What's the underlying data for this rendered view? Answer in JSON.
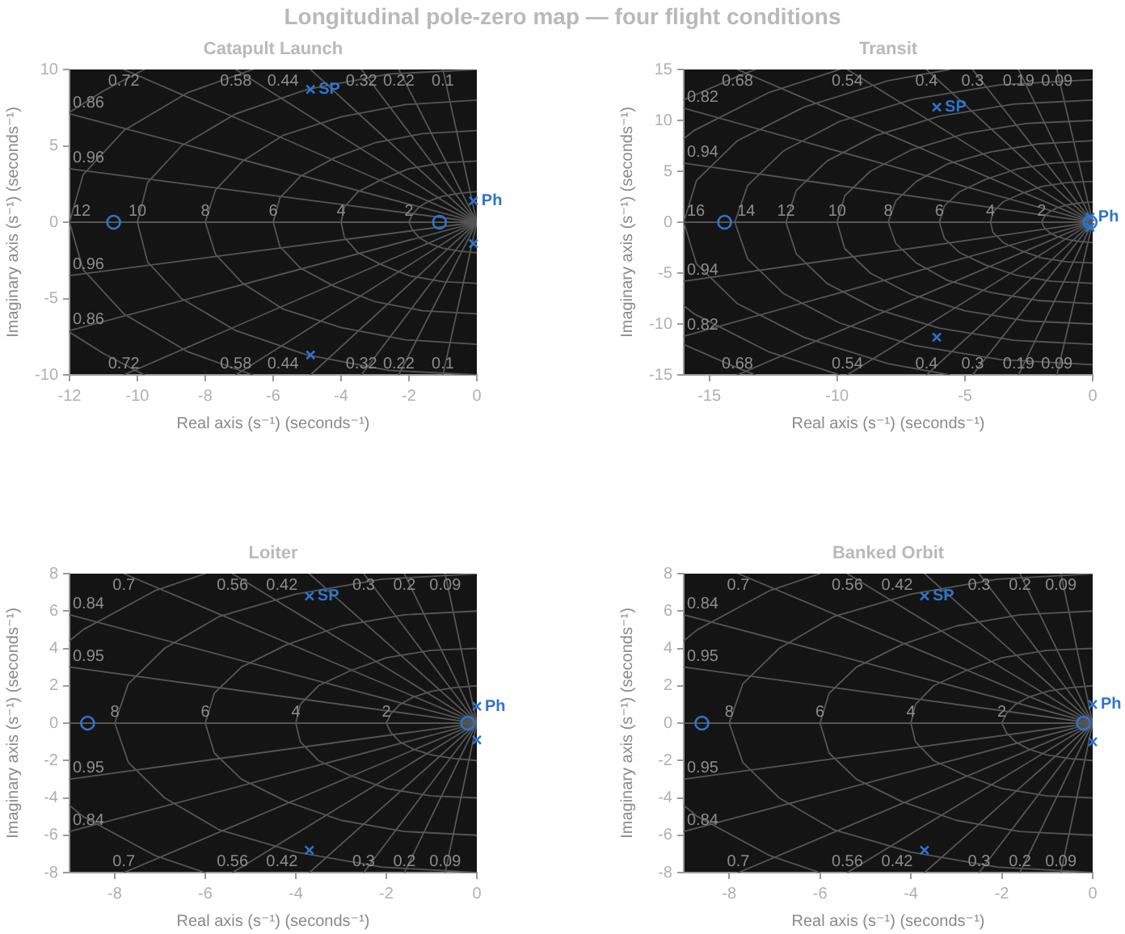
{
  "chart_data": [
    {
      "type": "other",
      "title": "Longitudinal pole-zero map — four flight conditions"
    },
    {
      "type": "scatter",
      "title": "Catapult Launch",
      "xlabel": "Real axis (s⁻¹) (seconds⁻¹)",
      "ylabel": "Imaginary axis (s⁻¹) (seconds⁻¹)",
      "xlim": [
        -12,
        0
      ],
      "xticks": [
        -12,
        -10,
        -8,
        -6,
        -4,
        -2,
        0
      ],
      "ylim": [
        -10,
        10
      ],
      "yticks": [
        -10,
        -5,
        0,
        5,
        10
      ],
      "series": [
        {
          "type": "line",
          "color": "#555555",
          "x": [
            -1,
            0,
            -1
          ],
          "values": [
            10,
            0,
            -10
          ]
        },
        {
          "type": "line",
          "color": "#555555",
          "x": [
            -2.3,
            0,
            -2.3
          ],
          "values": [
            10,
            0,
            -10
          ]
        },
        {
          "type": "line",
          "color": "#555555",
          "x": [
            -3.4,
            0,
            -3.4
          ],
          "values": [
            10,
            0,
            -10
          ]
        },
        {
          "type": "line",
          "color": "#555555",
          "x": [
            -4.9,
            0,
            -4.9
          ],
          "values": [
            10,
            0,
            -10
          ]
        },
        {
          "type": "line",
          "color": "#555555",
          "x": [
            -7.1,
            0,
            -7.1
          ],
          "values": [
            10,
            0,
            -10
          ]
        },
        {
          "type": "line",
          "color": "#555555",
          "x": [
            -10.4,
            0,
            -10.4
          ],
          "values": [
            10,
            0,
            -10
          ]
        },
        {
          "type": "line",
          "color": "#555555",
          "x": [
            -12,
            0,
            -12
          ],
          "values": [
            7.1,
            0,
            -7.1
          ]
        },
        {
          "type": "line",
          "color": "#555555",
          "x": [
            -12,
            0
          ],
          "values": [
            3.5,
            0
          ]
        },
        {
          "type": "line",
          "color": "#555555",
          "x": [
            -12,
            0
          ],
          "values": [
            -3.5,
            0
          ]
        },
        {
          "type": "line",
          "color": "#555555",
          "x": [
            -12,
            0
          ],
          "values": [
            0,
            0
          ]
        },
        {
          "type": "line",
          "color": "#555555",
          "x": [
            0,
            -0.5,
            -1,
            -1.4,
            -1.7,
            -1.9,
            -2,
            -1.9,
            -1.7,
            -1.4,
            -1,
            -0.5,
            0
          ],
          "values": [
            2,
            1.9,
            1.7,
            1.4,
            1,
            0.5,
            0,
            -0.5,
            -1,
            -1.4,
            -1.7,
            -1.9,
            -2
          ]
        },
        {
          "type": "line",
          "color": "#555555",
          "x": [
            0,
            -1,
            -2,
            -2.8,
            -3.5,
            -3.9,
            -4,
            -3.9,
            -3.5,
            -2.8,
            -2,
            -1,
            0
          ],
          "values": [
            4,
            3.9,
            3.5,
            2.8,
            2,
            1,
            0,
            -1,
            -2,
            -2.8,
            -3.5,
            -3.9,
            -4
          ]
        },
        {
          "type": "line",
          "color": "#555555",
          "x": [
            0,
            -1.6,
            -3,
            -4.2,
            -5.2,
            -5.8,
            -6,
            -5.8,
            -5.2,
            -4.2,
            -3,
            -1.6,
            0
          ],
          "values": [
            6,
            5.8,
            5.2,
            4.2,
            3,
            1.6,
            0,
            -1.6,
            -3,
            -4.2,
            -5.2,
            -5.8,
            -6
          ]
        },
        {
          "type": "line",
          "color": "#555555",
          "x": [
            0,
            -2.1,
            -4,
            -5.7,
            -6.9,
            -7.7,
            -8,
            -7.7,
            -6.9,
            -5.7,
            -4,
            -2.1,
            0
          ],
          "values": [
            8,
            7.7,
            6.9,
            5.7,
            4,
            2.1,
            0,
            -2.1,
            -4,
            -5.7,
            -6.9,
            -7.7,
            -8
          ]
        },
        {
          "type": "line",
          "color": "#555555",
          "x": [
            0,
            -2.6,
            -5,
            -7.1,
            -8.7,
            -9.7,
            -10,
            -9.7,
            -8.7,
            -7.1,
            -5,
            -2.6,
            0
          ],
          "values": [
            10,
            9.7,
            8.7,
            7.1,
            5,
            2.6,
            0,
            -2.6,
            -5,
            -7.1,
            -8.7,
            -9.7,
            -10
          ]
        },
        {
          "type": "line",
          "color": "#555555",
          "x": [
            -6.6,
            -8.5,
            -10.4,
            -11.6,
            -12,
            -11.6,
            -10.4,
            -8.5,
            -6.6
          ],
          "values": [
            10,
            8.5,
            6,
            3.1,
            0,
            -3.1,
            -6,
            -8.5,
            -10
          ]
        },
        {
          "type": "line",
          "color": "#555555",
          "x": [
            -9.8,
            -11,
            -12
          ],
          "values": [
            10,
            8.6,
            7.2
          ]
        },
        {
          "type": "line",
          "color": "#555555",
          "x": [
            -12,
            -11,
            -9.8
          ],
          "values": [
            -7.2,
            -8.6,
            -10
          ]
        },
        {
          "type": "scatter",
          "marker": "circle",
          "color": "#2f74cc",
          "x": [
            -10.7,
            -1.1
          ],
          "values": [
            0,
            0
          ]
        },
        {
          "name": "SP",
          "type": "scatter",
          "marker": "cross",
          "color": "#2f74cc",
          "x": [
            -4.9,
            -4.9
          ],
          "values": [
            8.7,
            -8.7
          ]
        },
        {
          "name": "Ph",
          "type": "scatter",
          "marker": "cross",
          "color": "#2f74cc",
          "x": [
            -0.1,
            -0.1
          ],
          "values": [
            1.4,
            -1.4
          ]
        }
      ],
      "annotations": [
        {
          "text": "0.72",
          "x": -10.4,
          "y": 10
        },
        {
          "text": "0.58",
          "x": -7.1,
          "y": 10
        },
        {
          "text": "0.44",
          "x": -4.9,
          "y": 10
        },
        {
          "text": "0.32",
          "x": -3.4,
          "y": 10
        },
        {
          "text": "0.22",
          "x": -2.3,
          "y": 10
        },
        {
          "text": "0.1",
          "x": -1,
          "y": 10
        },
        {
          "text": "0.72",
          "x": -10.4,
          "y": -10
        },
        {
          "text": "0.58",
          "x": -7.1,
          "y": -10
        },
        {
          "text": "0.44",
          "x": -4.9,
          "y": -10
        },
        {
          "text": "0.32",
          "x": -3.4,
          "y": -10
        },
        {
          "text": "0.22",
          "x": -2.3,
          "y": -10
        },
        {
          "text": "0.1",
          "x": -1,
          "y": -10
        },
        {
          "text": "0.86",
          "x": -12,
          "y": 7.1
        },
        {
          "text": "0.96",
          "x": -12,
          "y": 3.5
        },
        {
          "text": "0.96",
          "x": -12,
          "y": -3.5
        },
        {
          "text": "0.86",
          "x": -12,
          "y": -7.1
        },
        {
          "text": "12",
          "x": -12,
          "y": 0
        },
        {
          "text": "10",
          "x": -10,
          "y": 0
        },
        {
          "text": "8",
          "x": -8,
          "y": 0
        },
        {
          "text": "6",
          "x": -6,
          "y": 0
        },
        {
          "text": "4",
          "x": -4,
          "y": 0
        },
        {
          "text": "2",
          "x": -2,
          "y": 0
        }
      ]
    },
    {
      "type": "scatter",
      "title": "Transit",
      "xlabel": "Real axis (s⁻¹) (seconds⁻¹)",
      "ylabel": "Imaginary axis (s⁻¹) (seconds⁻¹)",
      "xlim": [
        -16,
        0
      ],
      "xticks": [
        -15,
        -10,
        -5,
        0
      ],
      "ylim": [
        -15,
        15
      ],
      "yticks": [
        -15,
        -10,
        -5,
        0,
        5,
        10,
        15
      ],
      "series": [
        {
          "type": "line",
          "color": "#555555",
          "x": [
            -1.4,
            0,
            -1.4
          ],
          "values": [
            15,
            0,
            -15
          ]
        },
        {
          "type": "line",
          "color": "#555555",
          "x": [
            -2.9,
            0,
            -2.9
          ],
          "values": [
            15,
            0,
            -15
          ]
        },
        {
          "type": "line",
          "color": "#555555",
          "x": [
            -4.7,
            0,
            -4.7
          ],
          "values": [
            15,
            0,
            -15
          ]
        },
        {
          "type": "line",
          "color": "#555555",
          "x": [
            -6.5,
            0,
            -6.5
          ],
          "values": [
            15,
            0,
            -15
          ]
        },
        {
          "type": "line",
          "color": "#555555",
          "x": [
            -9.6,
            0,
            -9.6
          ],
          "values": [
            15,
            0,
            -15
          ]
        },
        {
          "type": "line",
          "color": "#555555",
          "x": [
            -13.9,
            0,
            -13.9
          ],
          "values": [
            15,
            0,
            -15
          ]
        },
        {
          "type": "line",
          "color": "#555555",
          "x": [
            -16,
            0,
            -16
          ],
          "values": [
            11.2,
            0,
            -11.2
          ]
        },
        {
          "type": "line",
          "color": "#555555",
          "x": [
            -16,
            0
          ],
          "values": [
            5.8,
            0
          ]
        },
        {
          "type": "line",
          "color": "#555555",
          "x": [
            -16,
            0
          ],
          "values": [
            -5.8,
            0
          ]
        },
        {
          "type": "line",
          "color": "#555555",
          "x": [
            -16,
            0
          ],
          "values": [
            0,
            0
          ]
        },
        {
          "type": "line",
          "color": "#555555",
          "x": [
            0,
            -0.5,
            -1,
            -1.4,
            -1.7,
            -1.9,
            -2,
            -1.9,
            -1.7,
            -1.4,
            -1,
            -0.5,
            0
          ],
          "values": [
            2,
            1.9,
            1.7,
            1.4,
            1,
            0.5,
            0,
            -0.5,
            -1,
            -1.4,
            -1.7,
            -1.9,
            -2
          ]
        },
        {
          "type": "line",
          "color": "#555555",
          "x": [
            0,
            -1,
            -2,
            -2.8,
            -3.5,
            -3.9,
            -4,
            -3.9,
            -3.5,
            -2.8,
            -2,
            -1,
            0
          ],
          "values": [
            4,
            3.9,
            3.5,
            2.8,
            2,
            1,
            0,
            -1,
            -2,
            -2.8,
            -3.5,
            -3.9,
            -4
          ]
        },
        {
          "type": "line",
          "color": "#555555",
          "x": [
            0,
            -1.6,
            -3,
            -4.2,
            -5.2,
            -5.8,
            -6,
            -5.8,
            -5.2,
            -4.2,
            -3,
            -1.6,
            0
          ],
          "values": [
            6,
            5.8,
            5.2,
            4.2,
            3,
            1.6,
            0,
            -1.6,
            -3,
            -4.2,
            -5.2,
            -5.8,
            -6
          ]
        },
        {
          "type": "line",
          "color": "#555555",
          "x": [
            0,
            -2.1,
            -4,
            -5.7,
            -6.9,
            -7.7,
            -8,
            -7.7,
            -6.9,
            -5.7,
            -4,
            -2.1,
            0
          ],
          "values": [
            8,
            7.7,
            6.9,
            5.7,
            4,
            2.1,
            0,
            -2.1,
            -4,
            -5.7,
            -6.9,
            -7.7,
            -8
          ]
        },
        {
          "type": "line",
          "color": "#555555",
          "x": [
            0,
            -2.6,
            -5,
            -7.1,
            -8.7,
            -9.7,
            -10,
            -9.7,
            -8.7,
            -7.1,
            -5,
            -2.6,
            0
          ],
          "values": [
            10,
            9.7,
            8.7,
            7.1,
            5,
            2.6,
            0,
            -2.6,
            -5,
            -7.1,
            -8.7,
            -9.7,
            -10
          ]
        },
        {
          "type": "line",
          "color": "#555555",
          "x": [
            0,
            -3.1,
            -6,
            -8.5,
            -10.4,
            -11.6,
            -12,
            -11.6,
            -10.4,
            -8.5,
            -6,
            -3.1,
            0
          ],
          "values": [
            12,
            11.6,
            10.4,
            8.5,
            6,
            3.1,
            0,
            -3.1,
            -6,
            -8.5,
            -10.4,
            -11.6,
            -12
          ]
        },
        {
          "type": "line",
          "color": "#555555",
          "x": [
            0,
            -3.6,
            -7,
            -9.9,
            -12.1,
            -13.5,
            -14,
            -13.5,
            -12.1,
            -9.9,
            -7,
            -3.6,
            0
          ],
          "values": [
            14,
            13.5,
            12.1,
            9.9,
            7,
            3.6,
            0,
            -3.6,
            -7,
            -9.9,
            -12.1,
            -13.5,
            -14
          ]
        },
        {
          "type": "line",
          "color": "#555555",
          "x": [
            -5.6,
            -8,
            -11.3,
            -13.9,
            -15.5,
            -16,
            -15.5,
            -13.9,
            -11.3,
            -8,
            -5.6
          ],
          "values": [
            15,
            13.9,
            11.3,
            8,
            4.1,
            0,
            -4.1,
            -8,
            -11.3,
            -13.9,
            -15
          ]
        },
        {
          "type": "line",
          "color": "#555555",
          "x": [
            -9.9,
            -12.7,
            -15.6,
            -16
          ],
          "values": [
            15,
            12.7,
            9,
            8.2
          ]
        },
        {
          "type": "line",
          "color": "#555555",
          "x": [
            -16,
            -15.6,
            -12.7,
            -9.9
          ],
          "values": [
            -8.2,
            -9,
            -12.7,
            -15
          ]
        },
        {
          "type": "line",
          "color": "#555555",
          "x": [
            -13.2,
            -14.1,
            -16
          ],
          "values": [
            15,
            14.1,
            12
          ]
        },
        {
          "type": "line",
          "color": "#555555",
          "x": [
            -16,
            -14.1,
            -13.2
          ],
          "values": [
            -12,
            -14.1,
            -15
          ]
        },
        {
          "type": "scatter",
          "marker": "circle",
          "color": "#2f74cc",
          "x": [
            -14.4,
            -0.1
          ],
          "values": [
            0,
            0
          ]
        },
        {
          "name": "SP",
          "type": "scatter",
          "marker": "cross",
          "color": "#2f74cc",
          "x": [
            -6.1,
            -6.1
          ],
          "values": [
            11.3,
            -11.3
          ]
        },
        {
          "name": "Ph",
          "type": "scatter",
          "marker": "cross",
          "color": "#2f74cc",
          "x": [
            -0.1,
            -0.1
          ],
          "values": [
            0.5,
            -0.5
          ]
        }
      ],
      "annotations": [
        {
          "text": "0.68",
          "x": -13.9,
          "y": 15
        },
        {
          "text": "0.54",
          "x": -9.6,
          "y": 15
        },
        {
          "text": "0.4",
          "x": -6.5,
          "y": 15
        },
        {
          "text": "0.3",
          "x": -4.7,
          "y": 15
        },
        {
          "text": "0.19",
          "x": -2.9,
          "y": 15
        },
        {
          "text": "0.09",
          "x": -1.4,
          "y": 15
        },
        {
          "text": "0.68",
          "x": -13.9,
          "y": -15
        },
        {
          "text": "0.54",
          "x": -9.6,
          "y": -15
        },
        {
          "text": "0.4",
          "x": -6.5,
          "y": -15
        },
        {
          "text": "0.3",
          "x": -4.7,
          "y": -15
        },
        {
          "text": "0.19",
          "x": -2.9,
          "y": -15
        },
        {
          "text": "0.09",
          "x": -1.4,
          "y": -15
        },
        {
          "text": "0.82",
          "x": -16,
          "y": 11.2
        },
        {
          "text": "0.94",
          "x": -16,
          "y": 5.8
        },
        {
          "text": "0.94",
          "x": -16,
          "y": -5.8
        },
        {
          "text": "0.82",
          "x": -16,
          "y": -11.2
        },
        {
          "text": "16",
          "x": -16,
          "y": 0
        },
        {
          "text": "14",
          "x": -14,
          "y": 0
        },
        {
          "text": "12",
          "x": -12,
          "y": 0
        },
        {
          "text": "10",
          "x": -10,
          "y": 0
        },
        {
          "text": "8",
          "x": -8,
          "y": 0
        },
        {
          "text": "6",
          "x": -6,
          "y": 0
        },
        {
          "text": "4",
          "x": -4,
          "y": 0
        },
        {
          "text": "2",
          "x": -2,
          "y": 0
        }
      ]
    },
    {
      "type": "scatter",
      "title": "Loiter",
      "xlabel": "Real axis (s⁻¹) (seconds⁻¹)",
      "ylabel": "Imaginary axis (s⁻¹) (seconds⁻¹)",
      "xlim": [
        -9,
        0
      ],
      "xticks": [
        -8,
        -6,
        -4,
        -2,
        0
      ],
      "ylim": [
        -8,
        8
      ],
      "yticks": [
        -8,
        -6,
        -4,
        -2,
        0,
        2,
        4,
        6,
        8
      ],
      "series": [
        {
          "type": "line",
          "color": "#555555",
          "x": [
            -0.7,
            0,
            -0.7
          ],
          "values": [
            8,
            0,
            -8
          ]
        },
        {
          "type": "line",
          "color": "#555555",
          "x": [
            -1.6,
            0,
            -1.6
          ],
          "values": [
            8,
            0,
            -8
          ]
        },
        {
          "type": "line",
          "color": "#555555",
          "x": [
            -2.5,
            0,
            -2.5
          ],
          "values": [
            8,
            0,
            -8
          ]
        },
        {
          "type": "line",
          "color": "#555555",
          "x": [
            -3.7,
            0,
            -3.7
          ],
          "values": [
            8,
            0,
            -8
          ]
        },
        {
          "type": "line",
          "color": "#555555",
          "x": [
            -5.4,
            0,
            -5.4
          ],
          "values": [
            8,
            0,
            -8
          ]
        },
        {
          "type": "line",
          "color": "#555555",
          "x": [
            -7.8,
            0,
            -7.8
          ],
          "values": [
            8,
            0,
            -8
          ]
        },
        {
          "type": "line",
          "color": "#555555",
          "x": [
            -9,
            0,
            -9
          ],
          "values": [
            5.8,
            0,
            -5.8
          ]
        },
        {
          "type": "line",
          "color": "#555555",
          "x": [
            -9,
            0
          ],
          "values": [
            3,
            0
          ]
        },
        {
          "type": "line",
          "color": "#555555",
          "x": [
            -9,
            0
          ],
          "values": [
            -3,
            0
          ]
        },
        {
          "type": "line",
          "color": "#555555",
          "x": [
            -9,
            0
          ],
          "values": [
            0,
            0
          ]
        },
        {
          "type": "line",
          "color": "#555555",
          "x": [
            0,
            -0.5,
            -1,
            -1.4,
            -1.7,
            -1.9,
            -2,
            -1.9,
            -1.7,
            -1.4,
            -1,
            -0.5,
            0
          ],
          "values": [
            2,
            1.9,
            1.7,
            1.4,
            1,
            0.5,
            0,
            -0.5,
            -1,
            -1.4,
            -1.7,
            -1.9,
            -2
          ]
        },
        {
          "type": "line",
          "color": "#555555",
          "x": [
            0,
            -1,
            -2,
            -2.8,
            -3.5,
            -3.9,
            -4,
            -3.9,
            -3.5,
            -2.8,
            -2,
            -1,
            0
          ],
          "values": [
            4,
            3.9,
            3.5,
            2.8,
            2,
            1,
            0,
            -1,
            -2,
            -2.8,
            -3.5,
            -3.9,
            -4
          ]
        },
        {
          "type": "line",
          "color": "#555555",
          "x": [
            0,
            -1.6,
            -3,
            -4.2,
            -5.2,
            -5.8,
            -6,
            -5.8,
            -5.2,
            -4.2,
            -3,
            -1.6,
            0
          ],
          "values": [
            6,
            5.8,
            5.2,
            4.2,
            3,
            1.6,
            0,
            -1.6,
            -3,
            -4.2,
            -5.2,
            -5.8,
            -6
          ]
        },
        {
          "type": "line",
          "color": "#555555",
          "x": [
            0,
            -2.1,
            -4,
            -5.7,
            -6.9,
            -7.7,
            -8,
            -7.7,
            -6.9,
            -5.7,
            -4,
            -2.1,
            0
          ],
          "values": [
            8,
            7.7,
            6.9,
            5.7,
            4,
            2.1,
            0,
            -2.1,
            -4,
            -5.7,
            -6.9,
            -7.7,
            -8
          ]
        },
        {
          "type": "line",
          "color": "#555555",
          "x": [
            -6,
            -7.1,
            -8.7,
            -9
          ],
          "values": [
            8,
            7.1,
            5,
            4.4
          ]
        },
        {
          "type": "line",
          "color": "#555555",
          "x": [
            -9,
            -8.7,
            -7.1,
            -6
          ],
          "values": [
            -4.4,
            -5,
            -7.1,
            -8
          ]
        },
        {
          "type": "scatter",
          "marker": "circle",
          "color": "#2f74cc",
          "x": [
            -8.6,
            -0.2
          ],
          "values": [
            0,
            0
          ]
        },
        {
          "name": "SP",
          "type": "scatter",
          "marker": "cross",
          "color": "#2f74cc",
          "x": [
            -3.7,
            -3.7
          ],
          "values": [
            6.8,
            -6.8
          ]
        },
        {
          "name": "Ph",
          "type": "scatter",
          "marker": "cross",
          "color": "#2f74cc",
          "x": [
            0,
            0
          ],
          "values": [
            0.9,
            -0.9
          ]
        }
      ],
      "annotations": [
        {
          "text": "0.7",
          "x": -7.8,
          "y": 8
        },
        {
          "text": "0.56",
          "x": -5.4,
          "y": 8
        },
        {
          "text": "0.42",
          "x": -3.7,
          "y": 8
        },
        {
          "text": "0.3",
          "x": -2.5,
          "y": 8
        },
        {
          "text": "0.2",
          "x": -1.6,
          "y": 8
        },
        {
          "text": "0.09",
          "x": -0.7,
          "y": 8
        },
        {
          "text": "0.7",
          "x": -7.8,
          "y": -8
        },
        {
          "text": "0.56",
          "x": -5.4,
          "y": -8
        },
        {
          "text": "0.42",
          "x": -3.7,
          "y": -8
        },
        {
          "text": "0.3",
          "x": -2.5,
          "y": -8
        },
        {
          "text": "0.2",
          "x": -1.6,
          "y": -8
        },
        {
          "text": "0.09",
          "x": -0.7,
          "y": -8
        },
        {
          "text": "0.84",
          "x": -9,
          "y": 5.8
        },
        {
          "text": "0.95",
          "x": -9,
          "y": 3
        },
        {
          "text": "0.95",
          "x": -9,
          "y": -3
        },
        {
          "text": "0.84",
          "x": -9,
          "y": -5.8
        },
        {
          "text": "8",
          "x": -8,
          "y": 0
        },
        {
          "text": "6",
          "x": -6,
          "y": 0
        },
        {
          "text": "4",
          "x": -4,
          "y": 0
        },
        {
          "text": "2",
          "x": -2,
          "y": 0
        }
      ]
    },
    {
      "type": "scatter",
      "title": "Banked Orbit",
      "xlabel": "Real axis (s⁻¹) (seconds⁻¹)",
      "ylabel": "Imaginary axis (s⁻¹) (seconds⁻¹)",
      "xlim": [
        -9,
        0
      ],
      "xticks": [
        -8,
        -6,
        -4,
        -2,
        0
      ],
      "ylim": [
        -8,
        8
      ],
      "yticks": [
        -8,
        -6,
        -4,
        -2,
        0,
        2,
        4,
        6,
        8
      ],
      "series": [
        {
          "type": "line",
          "color": "#555555",
          "x": [
            -0.7,
            0,
            -0.7
          ],
          "values": [
            8,
            0,
            -8
          ]
        },
        {
          "type": "line",
          "color": "#555555",
          "x": [
            -1.6,
            0,
            -1.6
          ],
          "values": [
            8,
            0,
            -8
          ]
        },
        {
          "type": "line",
          "color": "#555555",
          "x": [
            -2.5,
            0,
            -2.5
          ],
          "values": [
            8,
            0,
            -8
          ]
        },
        {
          "type": "line",
          "color": "#555555",
          "x": [
            -3.7,
            0,
            -3.7
          ],
          "values": [
            8,
            0,
            -8
          ]
        },
        {
          "type": "line",
          "color": "#555555",
          "x": [
            -5.4,
            0,
            -5.4
          ],
          "values": [
            8,
            0,
            -8
          ]
        },
        {
          "type": "line",
          "color": "#555555",
          "x": [
            -7.8,
            0,
            -7.8
          ],
          "values": [
            8,
            0,
            -8
          ]
        },
        {
          "type": "line",
          "color": "#555555",
          "x": [
            -9,
            0,
            -9
          ],
          "values": [
            5.8,
            0,
            -5.8
          ]
        },
        {
          "type": "line",
          "color": "#555555",
          "x": [
            -9,
            0
          ],
          "values": [
            3,
            0
          ]
        },
        {
          "type": "line",
          "color": "#555555",
          "x": [
            -9,
            0
          ],
          "values": [
            -3,
            0
          ]
        },
        {
          "type": "line",
          "color": "#555555",
          "x": [
            -9,
            0
          ],
          "values": [
            0,
            0
          ]
        },
        {
          "type": "line",
          "color": "#555555",
          "x": [
            0,
            -0.5,
            -1,
            -1.4,
            -1.7,
            -1.9,
            -2,
            -1.9,
            -1.7,
            -1.4,
            -1,
            -0.5,
            0
          ],
          "values": [
            2,
            1.9,
            1.7,
            1.4,
            1,
            0.5,
            0,
            -0.5,
            -1,
            -1.4,
            -1.7,
            -1.9,
            -2
          ]
        },
        {
          "type": "line",
          "color": "#555555",
          "x": [
            0,
            -1,
            -2,
            -2.8,
            -3.5,
            -3.9,
            -4,
            -3.9,
            -3.5,
            -2.8,
            -2,
            -1,
            0
          ],
          "values": [
            4,
            3.9,
            3.5,
            2.8,
            2,
            1,
            0,
            -1,
            -2,
            -2.8,
            -3.5,
            -3.9,
            -4
          ]
        },
        {
          "type": "line",
          "color": "#555555",
          "x": [
            0,
            -1.6,
            -3,
            -4.2,
            -5.2,
            -5.8,
            -6,
            -5.8,
            -5.2,
            -4.2,
            -3,
            -1.6,
            0
          ],
          "values": [
            6,
            5.8,
            5.2,
            4.2,
            3,
            1.6,
            0,
            -1.6,
            -3,
            -4.2,
            -5.2,
            -5.8,
            -6
          ]
        },
        {
          "type": "line",
          "color": "#555555",
          "x": [
            0,
            -2.1,
            -4,
            -5.7,
            -6.9,
            -7.7,
            -8,
            -7.7,
            -6.9,
            -5.7,
            -4,
            -2.1,
            0
          ],
          "values": [
            8,
            7.7,
            6.9,
            5.7,
            4,
            2.1,
            0,
            -2.1,
            -4,
            -5.7,
            -6.9,
            -7.7,
            -8
          ]
        },
        {
          "type": "line",
          "color": "#555555",
          "x": [
            -6,
            -7.1,
            -8.7,
            -9
          ],
          "values": [
            8,
            7.1,
            5,
            4.4
          ]
        },
        {
          "type": "line",
          "color": "#555555",
          "x": [
            -9,
            -8.7,
            -7.1,
            -6
          ],
          "values": [
            -4.4,
            -5,
            -7.1,
            -8
          ]
        },
        {
          "type": "scatter",
          "marker": "circle",
          "color": "#2f74cc",
          "x": [
            -8.6,
            -0.2
          ],
          "values": [
            0,
            0
          ]
        },
        {
          "name": "SP",
          "type": "scatter",
          "marker": "cross",
          "color": "#2f74cc",
          "x": [
            -3.7,
            -3.7
          ],
          "values": [
            6.8,
            -6.8
          ]
        },
        {
          "name": "Ph",
          "type": "scatter",
          "marker": "cross",
          "color": "#2f74cc",
          "x": [
            0,
            0
          ],
          "values": [
            1,
            -1
          ]
        }
      ],
      "annotations": [
        {
          "text": "0.7",
          "x": -7.8,
          "y": 8
        },
        {
          "text": "0.56",
          "x": -5.4,
          "y": 8
        },
        {
          "text": "0.42",
          "x": -3.7,
          "y": 8
        },
        {
          "text": "0.3",
          "x": -2.5,
          "y": 8
        },
        {
          "text": "0.2",
          "x": -1.6,
          "y": 8
        },
        {
          "text": "0.09",
          "x": -0.7,
          "y": 8
        },
        {
          "text": "0.7",
          "x": -7.8,
          "y": -8
        },
        {
          "text": "0.56",
          "x": -5.4,
          "y": -8
        },
        {
          "text": "0.42",
          "x": -3.7,
          "y": -8
        },
        {
          "text": "0.3",
          "x": -2.5,
          "y": -8
        },
        {
          "text": "0.2",
          "x": -1.6,
          "y": -8
        },
        {
          "text": "0.09",
          "x": -0.7,
          "y": -8
        },
        {
          "text": "0.84",
          "x": -9,
          "y": 5.8
        },
        {
          "text": "0.95",
          "x": -9,
          "y": 3
        },
        {
          "text": "0.95",
          "x": -9,
          "y": -3
        },
        {
          "text": "0.84",
          "x": -9,
          "y": -5.8
        },
        {
          "text": "8",
          "x": -8,
          "y": 0
        },
        {
          "text": "6",
          "x": -6,
          "y": 0
        },
        {
          "text": "4",
          "x": -4,
          "y": 0
        },
        {
          "text": "2",
          "x": -2,
          "y": 0
        }
      ]
    }
  ]
}
